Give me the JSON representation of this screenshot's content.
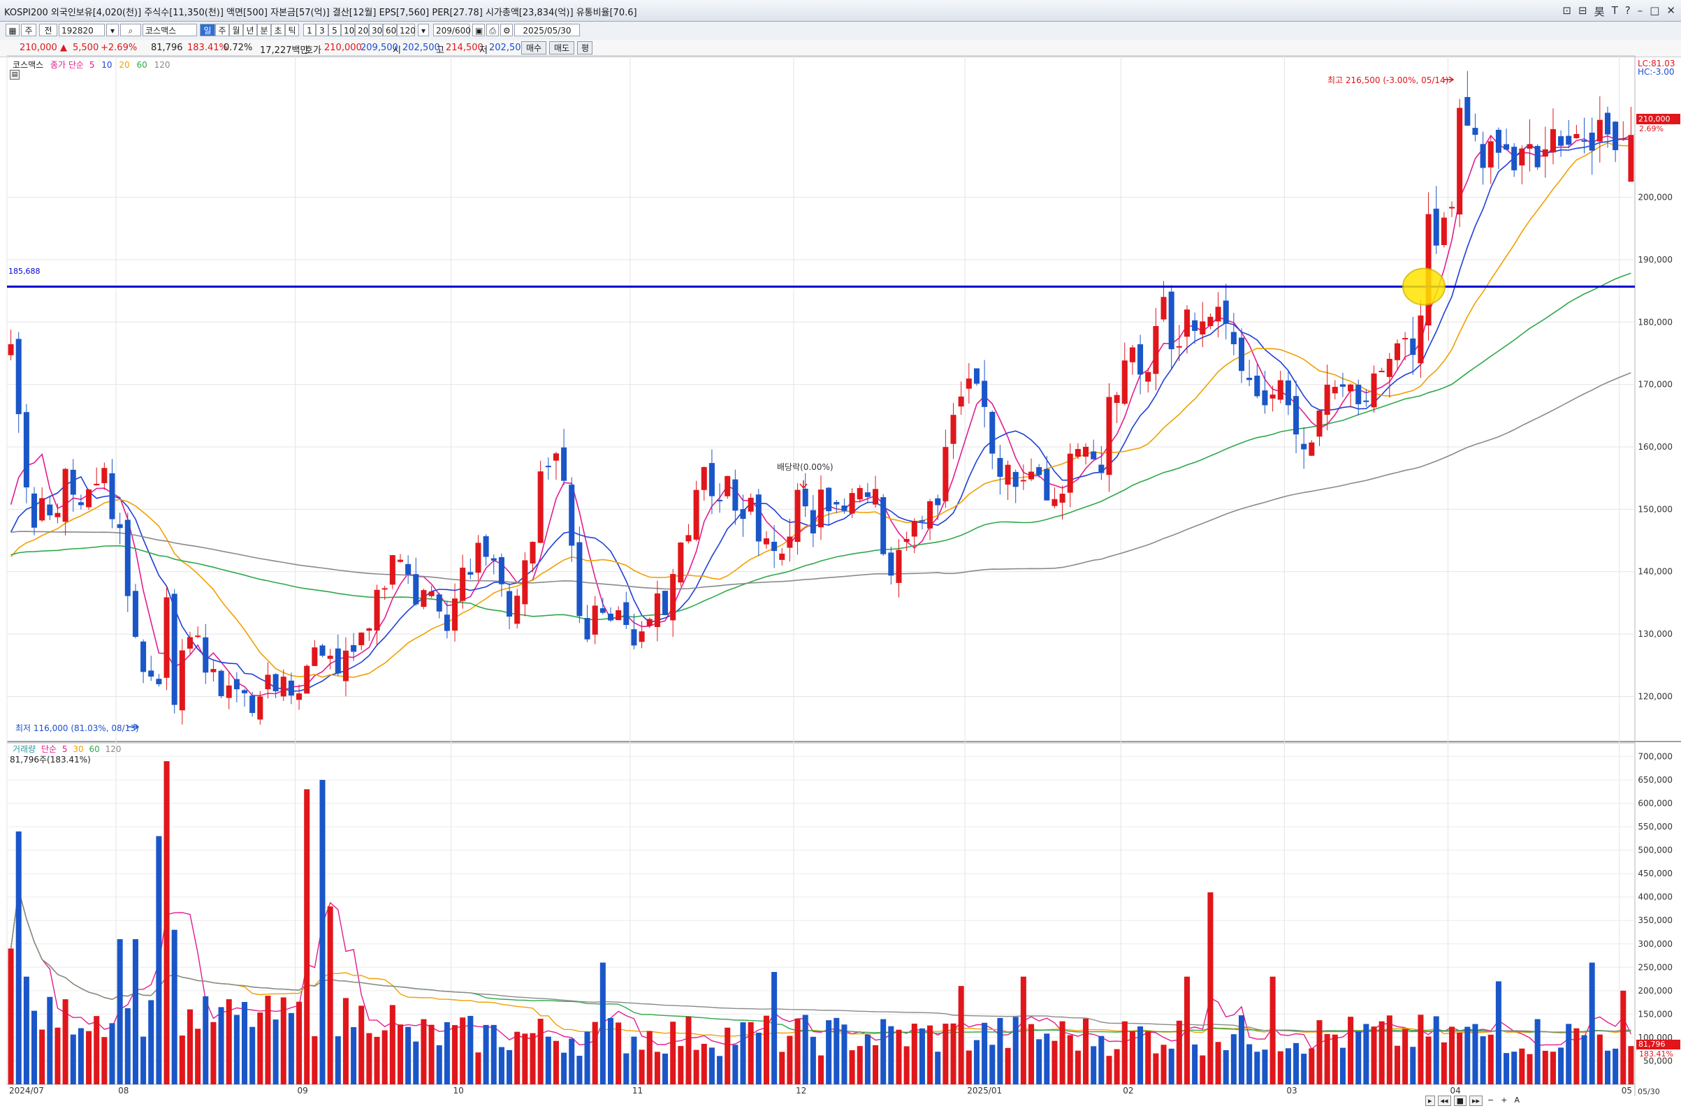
{
  "titlebar": {
    "text": "KOSPI200 외국인보유[4,020(천)] 주식수[11,350(천)] 액면[500] 자본금[57(억)] 결산[12월] EPS[7,560] PER[27.78] 시가총액[23,834(억)] 유통비율[70.6]",
    "win_icons": [
      "⊡",
      "⊟",
      "昊",
      "T",
      "?",
      "–",
      "□",
      "✕"
    ]
  },
  "toolbar": {
    "type_label": "주",
    "mode_label": "전",
    "code": "192820",
    "stock_name": "코스맥스",
    "periods": [
      "일",
      "주",
      "월",
      "년",
      "분",
      "초",
      "틱"
    ],
    "selected_period": "일",
    "minutes": [
      "1",
      "3",
      "5",
      "10",
      "20",
      "30",
      "60",
      "120"
    ],
    "count": "209/600",
    "date": "2025/05/30"
  },
  "infobar": {
    "price": "210,000",
    "arrow": "▲",
    "change": "5,500",
    "change_pct": "+2.69%",
    "volume": "81,796",
    "volume_ratio": "183.41%",
    "turnover": "0.72%",
    "value": "17,227백만",
    "quote_label": "호가",
    "ask": "210,000",
    "bid": "209,500",
    "open_label": "시",
    "open": "202,500",
    "high_label": "고",
    "high": "214,500",
    "low_label": "저",
    "low": "202,500",
    "buy_btn": "매수",
    "sell_btn": "매도",
    "flat_btn": "평"
  },
  "price_legend": {
    "name": "코스맥스",
    "kind": "종가 단순",
    "periods": [
      "5",
      "10",
      "20",
      "60",
      "120"
    ]
  },
  "volume_legend": {
    "name": "거래량",
    "kind": "단순",
    "periods": [
      "5",
      "30",
      "60",
      "120"
    ],
    "current": "81,796주(183.41%)"
  },
  "annotations": {
    "high": "최고 216,500 (-3.00%, 05/14)",
    "low": "최저 116,000 (81.03%, 08/13)",
    "dividend": "배당락(0.00%)",
    "hline_label": "185,688",
    "lc": "LC:81.03",
    "hc": "HC:-3.00",
    "price_tag": "210,000",
    "price_tag_pct": "2.69%",
    "vol_tag": "81,796",
    "vol_tag_pct": "183.41%"
  },
  "colors": {
    "up": "#e0161b",
    "down": "#1a56c8",
    "ma5": "#e11d8f",
    "ma10": "#1f3fd6",
    "ma20": "#f0a000",
    "ma60": "#2fa84a",
    "ma120": "#8a8a8a",
    "hline": "#0000d0",
    "marker": "#ffe400"
  },
  "chart_data": {
    "type": "candlestick",
    "hline": 185688,
    "price_axis": {
      "ylim": [
        113000,
        222000
      ],
      "ticks": [
        120000,
        130000,
        140000,
        150000,
        160000,
        170000,
        180000,
        190000,
        200000
      ]
    },
    "volume_axis": {
      "ylim": [
        0,
        720000
      ],
      "ticks": [
        50000,
        100000,
        150000,
        200000,
        250000,
        300000,
        350000,
        400000,
        450000,
        500000,
        550000,
        600000,
        650000,
        700000
      ]
    },
    "x_labels": [
      {
        "i": 0,
        "t": "2024/07"
      },
      {
        "i": 14,
        "t": "08"
      },
      {
        "i": 37,
        "t": "09"
      },
      {
        "i": 57,
        "t": "10"
      },
      {
        "i": 80,
        "t": "11"
      },
      {
        "i": 101,
        "t": "12"
      },
      {
        "i": 123,
        "t": "2025/01"
      },
      {
        "i": 143,
        "t": "02"
      },
      {
        "i": 164,
        "t": "03"
      },
      {
        "i": 185,
        "t": "04"
      },
      {
        "i": 207,
        "t": "05"
      }
    ],
    "x_right": "05/30",
    "n": 209,
    "anchors": [
      [
        0,
        176500
      ],
      [
        1,
        165000
      ],
      [
        2,
        155000
      ],
      [
        3,
        148000
      ],
      [
        4,
        152000
      ],
      [
        5,
        149000
      ],
      [
        6,
        151000
      ],
      [
        7,
        155000
      ],
      [
        8,
        152000
      ],
      [
        9,
        151000
      ],
      [
        10,
        154000
      ],
      [
        11,
        153000
      ],
      [
        12,
        156000
      ],
      [
        13,
        150000
      ],
      [
        14,
        147000
      ],
      [
        15,
        137000
      ],
      [
        16,
        129000
      ],
      [
        17,
        125000
      ],
      [
        18,
        123000
      ],
      [
        19,
        122000
      ],
      [
        20,
        137000
      ],
      [
        21,
        120000
      ],
      [
        22,
        126000
      ],
      [
        23,
        128000
      ],
      [
        24,
        131000
      ],
      [
        25,
        124000
      ],
      [
        26,
        123000
      ],
      [
        27,
        121000
      ],
      [
        28,
        122000
      ],
      [
        29,
        121000
      ],
      [
        30,
        120000
      ],
      [
        31,
        118000
      ],
      [
        32,
        121000
      ],
      [
        33,
        122000
      ],
      [
        34,
        121000
      ],
      [
        35,
        124000
      ],
      [
        36,
        120000
      ],
      [
        37,
        121000
      ],
      [
        38,
        126000
      ],
      [
        39,
        127000
      ],
      [
        40,
        127000
      ],
      [
        41,
        127000
      ],
      [
        42,
        125000
      ],
      [
        43,
        126000
      ],
      [
        44,
        128000
      ],
      [
        45,
        129000
      ],
      [
        46,
        131000
      ],
      [
        47,
        138000
      ],
      [
        48,
        137000
      ],
      [
        49,
        143000
      ],
      [
        50,
        141000
      ],
      [
        51,
        139000
      ],
      [
        52,
        136000
      ],
      [
        53,
        138000
      ],
      [
        54,
        137000
      ],
      [
        55,
        135000
      ],
      [
        56,
        132000
      ],
      [
        57,
        136000
      ],
      [
        58,
        140000
      ],
      [
        59,
        139000
      ],
      [
        60,
        143000
      ],
      [
        61,
        143000
      ],
      [
        62,
        142000
      ],
      [
        63,
        138000
      ],
      [
        64,
        133000
      ],
      [
        65,
        135000
      ],
      [
        66,
        142000
      ],
      [
        67,
        145000
      ],
      [
        68,
        157000
      ],
      [
        69,
        158000
      ],
      [
        70,
        158000
      ],
      [
        71,
        156000
      ],
      [
        72,
        145000
      ],
      [
        73,
        132000
      ],
      [
        74,
        128000
      ],
      [
        75,
        133000
      ],
      [
        76,
        132000
      ],
      [
        77,
        131000
      ],
      [
        78,
        133000
      ],
      [
        79,
        131000
      ],
      [
        80,
        128000
      ],
      [
        81,
        132000
      ],
      [
        82,
        133000
      ],
      [
        83,
        137000
      ],
      [
        84,
        134000
      ],
      [
        85,
        140000
      ],
      [
        86,
        144000
      ],
      [
        87,
        145000
      ],
      [
        88,
        154000
      ],
      [
        89,
        155000
      ],
      [
        90,
        154000
      ],
      [
        91,
        152000
      ],
      [
        92,
        155000
      ],
      [
        93,
        150000
      ],
      [
        94,
        150000
      ],
      [
        95,
        150000
      ],
      [
        96,
        145000
      ],
      [
        97,
        144000
      ],
      [
        98,
        143000
      ],
      [
        99,
        143000
      ],
      [
        100,
        147000
      ],
      [
        101,
        152000
      ],
      [
        102,
        149000
      ],
      [
        103,
        147000
      ],
      [
        104,
        155000
      ],
      [
        105,
        151000
      ],
      [
        106,
        150000
      ],
      [
        107,
        149000
      ],
      [
        108,
        152000
      ],
      [
        109,
        152000
      ],
      [
        110,
        153000
      ],
      [
        111,
        152000
      ],
      [
        112,
        144000
      ],
      [
        113,
        141000
      ],
      [
        114,
        145000
      ],
      [
        115,
        147000
      ],
      [
        116,
        148000
      ],
      [
        117,
        147000
      ],
      [
        118,
        150000
      ],
      [
        119,
        152000
      ],
      [
        120,
        160000
      ],
      [
        121,
        167000
      ],
      [
        122,
        169000
      ],
      [
        123,
        171000
      ],
      [
        124,
        172000
      ],
      [
        125,
        167000
      ],
      [
        126,
        160000
      ],
      [
        127,
        156000
      ],
      [
        128,
        156000
      ],
      [
        129,
        155000
      ],
      [
        130,
        156000
      ],
      [
        131,
        158000
      ],
      [
        132,
        155000
      ],
      [
        133,
        153000
      ],
      [
        134,
        152000
      ],
      [
        135,
        154000
      ],
      [
        136,
        159000
      ],
      [
        137,
        160000
      ],
      [
        138,
        162000
      ],
      [
        139,
        157000
      ],
      [
        140,
        156000
      ],
      [
        141,
        167000
      ],
      [
        142,
        169000
      ],
      [
        143,
        172000
      ],
      [
        144,
        175000
      ],
      [
        145,
        171000
      ],
      [
        146,
        173000
      ],
      [
        147,
        180000
      ],
      [
        148,
        186000
      ],
      [
        149,
        174000
      ],
      [
        150,
        178000
      ],
      [
        151,
        184000
      ],
      [
        152,
        180000
      ],
      [
        153,
        181000
      ],
      [
        154,
        183000
      ],
      [
        155,
        182000
      ],
      [
        156,
        180000
      ],
      [
        157,
        177000
      ],
      [
        158,
        172000
      ],
      [
        159,
        169000
      ],
      [
        160,
        168000
      ],
      [
        161,
        167000
      ],
      [
        162,
        170000
      ],
      [
        163,
        169000
      ],
      [
        164,
        166000
      ],
      [
        165,
        162000
      ],
      [
        166,
        158000
      ],
      [
        167,
        160000
      ],
      [
        168,
        166000
      ],
      [
        169,
        168000
      ],
      [
        170,
        168000
      ],
      [
        171,
        170000
      ],
      [
        172,
        170000
      ],
      [
        173,
        166000
      ],
      [
        174,
        166000
      ],
      [
        175,
        170000
      ],
      [
        176,
        172000
      ],
      [
        177,
        172000
      ],
      [
        178,
        176000
      ],
      [
        179,
        176000
      ],
      [
        180,
        175000
      ],
      [
        181,
        183000
      ],
      [
        182,
        195000
      ],
      [
        183,
        192000
      ],
      [
        184,
        196000
      ],
      [
        185,
        199000
      ],
      [
        186,
        213000
      ],
      [
        187,
        210000
      ],
      [
        188,
        210000
      ],
      [
        189,
        205000
      ],
      [
        190,
        207000
      ],
      [
        191,
        206000
      ],
      [
        192,
        210000
      ],
      [
        193,
        205000
      ],
      [
        194,
        208000
      ],
      [
        195,
        206000
      ],
      [
        196,
        204000
      ],
      [
        197,
        209500
      ],
      [
        198,
        210000
      ]
    ]
  }
}
